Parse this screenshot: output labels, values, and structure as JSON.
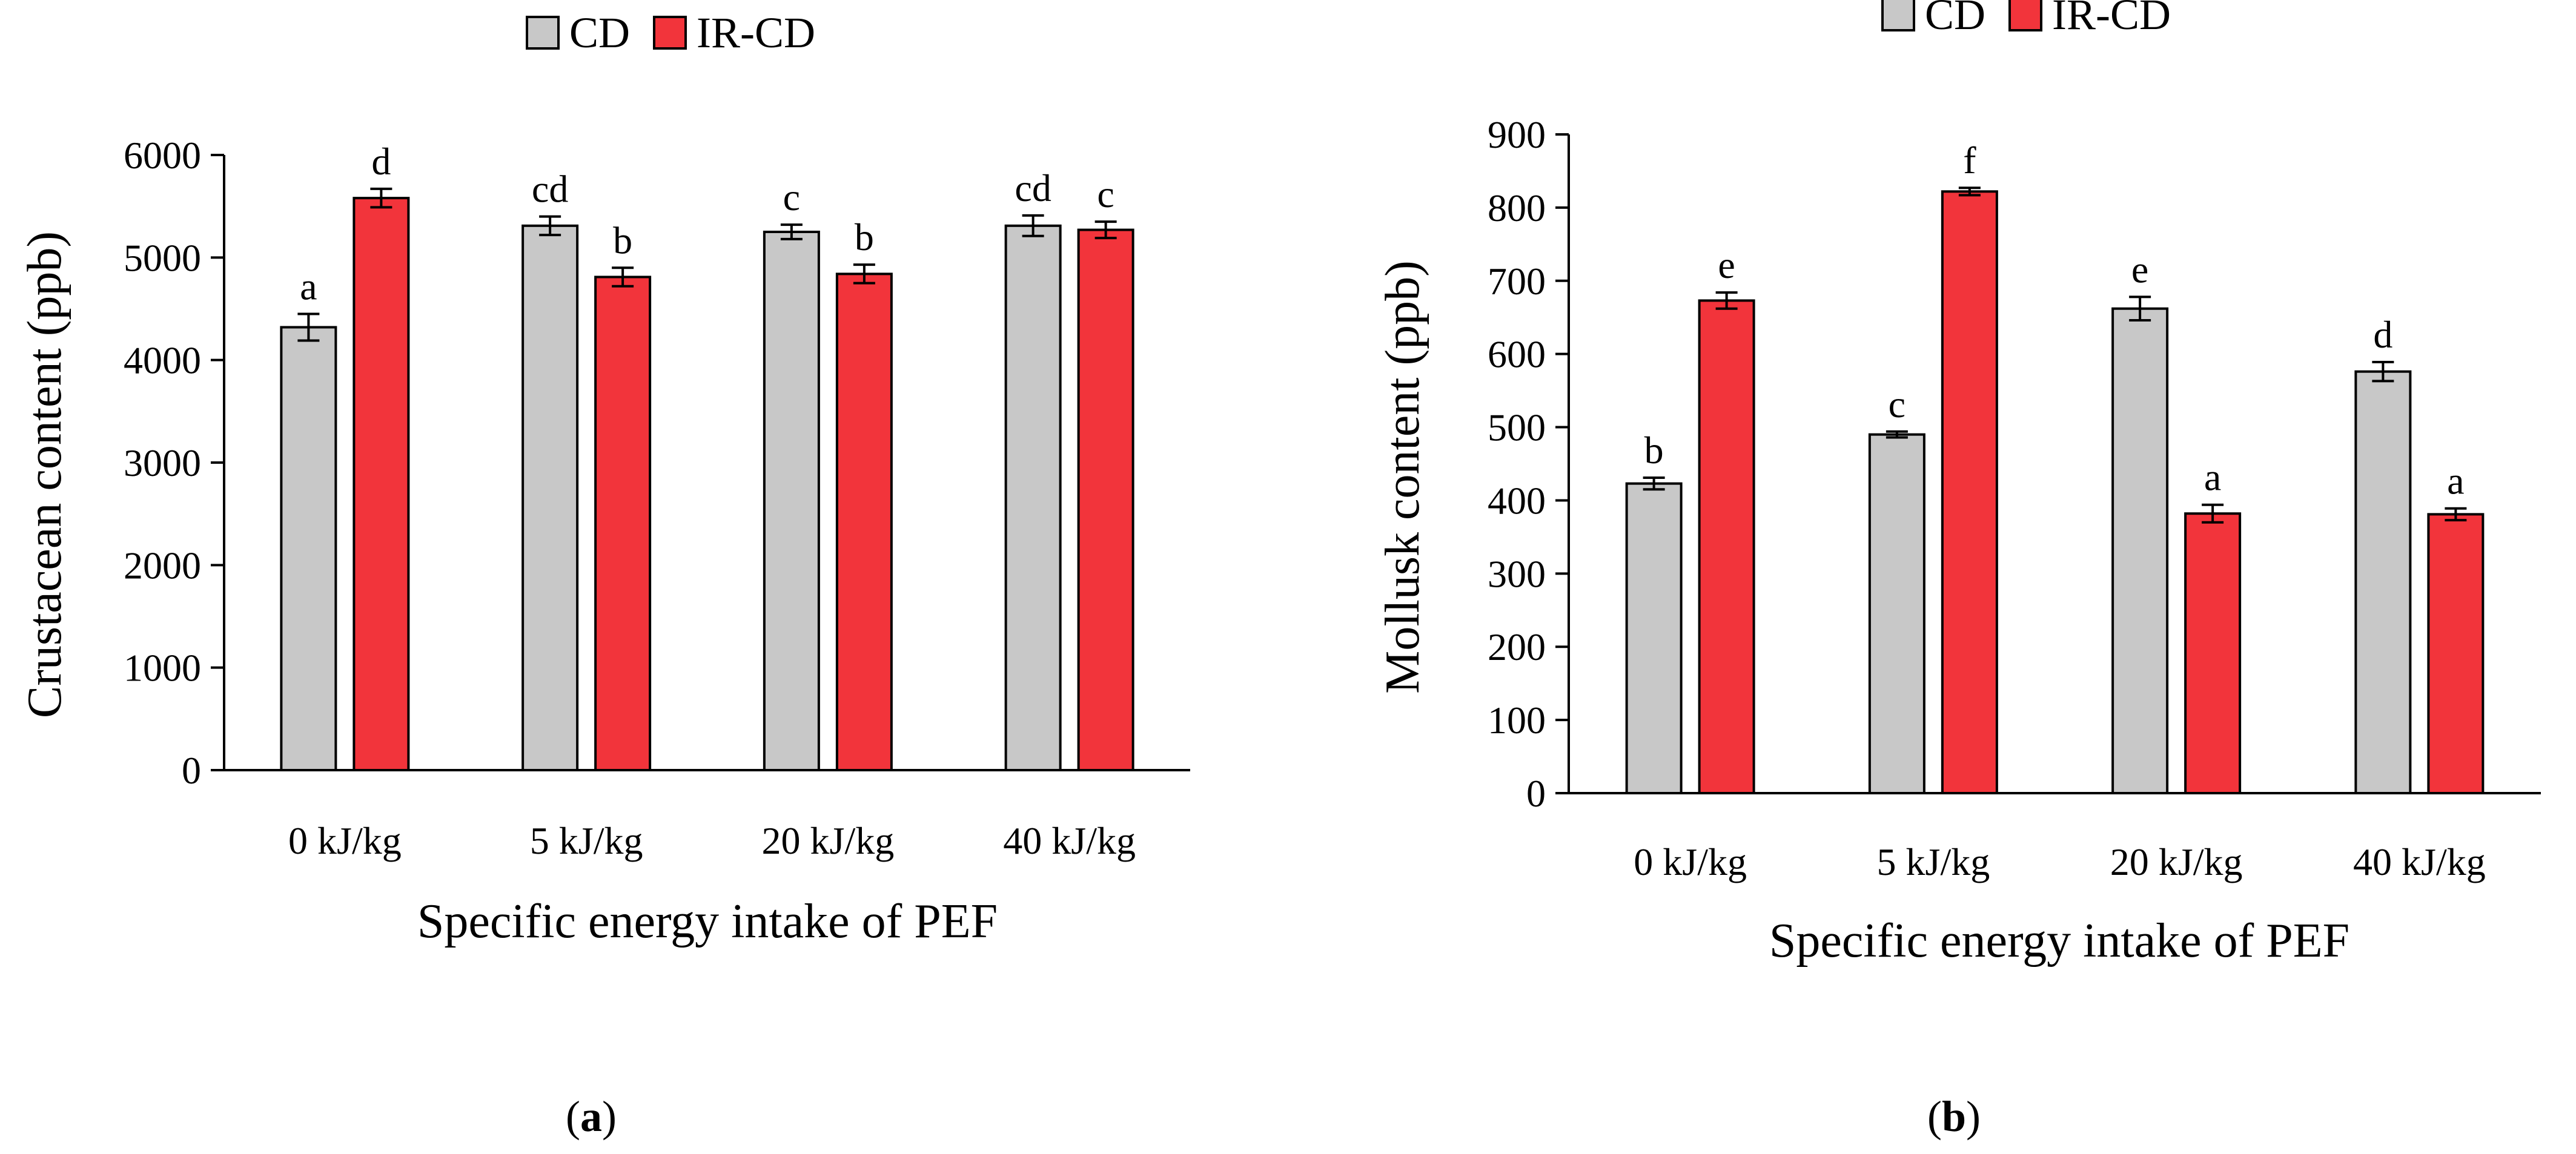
{
  "chart_data": [
    {
      "type": "bar",
      "panel": "(a)",
      "categories": [
        "0 kJ/kg",
        "5 kJ/kg",
        "20 kJ/kg",
        "40 kJ/kg"
      ],
      "series": [
        {
          "name": "CD",
          "color": "#c8c8c8",
          "values": [
            4320,
            5310,
            5250,
            5310
          ],
          "errors": [
            130,
            90,
            70,
            100
          ],
          "labels": [
            "a",
            "cd",
            "c",
            "cd"
          ]
        },
        {
          "name": "IR-CD",
          "color": "#f2343b",
          "values": [
            5580,
            4810,
            4840,
            5270
          ],
          "errors": [
            90,
            90,
            90,
            80
          ],
          "labels": [
            "d",
            "b",
            "b",
            "c"
          ]
        }
      ],
      "xlabel": "Specific energy intake of PEF",
      "ylabel": "Crustacean content (ppb)",
      "ylim": [
        0,
        6000
      ],
      "yticks": [
        0,
        1000,
        2000,
        3000,
        4000,
        5000,
        6000
      ],
      "legend": "top-center"
    },
    {
      "type": "bar",
      "panel": "(b)",
      "categories": [
        "0 kJ/kg",
        "5 kJ/kg",
        "20 kJ/kg",
        "40 kJ/kg"
      ],
      "series": [
        {
          "name": "CD",
          "color": "#c8c8c8",
          "values": [
            423,
            490,
            662,
            576
          ],
          "errors": [
            8,
            4,
            16,
            13
          ],
          "labels": [
            "b",
            "c",
            "e",
            "d"
          ]
        },
        {
          "name": "IR-CD",
          "color": "#f2343b",
          "values": [
            673,
            822,
            382,
            381
          ],
          "errors": [
            11,
            5,
            12,
            8
          ],
          "labels": [
            "e",
            "f",
            "a",
            "a"
          ]
        }
      ],
      "xlabel": "Specific energy intake of PEF",
      "ylabel": "Mollusk content (ppb)",
      "ylim": [
        0,
        900
      ],
      "yticks": [
        0,
        100,
        200,
        300,
        400,
        500,
        600,
        700,
        800,
        900
      ],
      "legend": "top-center"
    }
  ]
}
